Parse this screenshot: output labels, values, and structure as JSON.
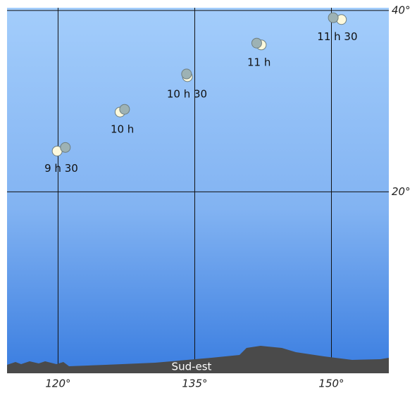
{
  "chart_data": {
    "type": "scatter",
    "labels": [
      "9 h 30",
      "10 h",
      "10 h 30",
      "11 h",
      "11 h 30"
    ],
    "series": [
      {
        "color": "#fdf9dc",
        "x": [
          119.9,
          126.8,
          134.2,
          142.3,
          151.1
        ],
        "values": [
          24.5,
          28.8,
          32.7,
          36.2,
          39.0
        ]
      },
      {
        "color": "#9db2b4",
        "x": [
          120.8,
          127.3,
          134.1,
          141.8,
          150.2
        ],
        "values": [
          24.9,
          29.1,
          33.0,
          36.4,
          39.2
        ]
      }
    ],
    "xlim": [
      114.4,
      156.3
    ],
    "ylim": [
      0,
      40.3
    ],
    "xticks": [
      {
        "value": 120,
        "label": "120°"
      },
      {
        "value": 135,
        "label": "135°"
      },
      {
        "value": 150,
        "label": "150°"
      }
    ],
    "yticks": [
      {
        "value": 20,
        "label": "20°"
      },
      {
        "value": 40,
        "label": "40°"
      }
    ],
    "grid": true,
    "horizon_label": "Sud-est"
  }
}
